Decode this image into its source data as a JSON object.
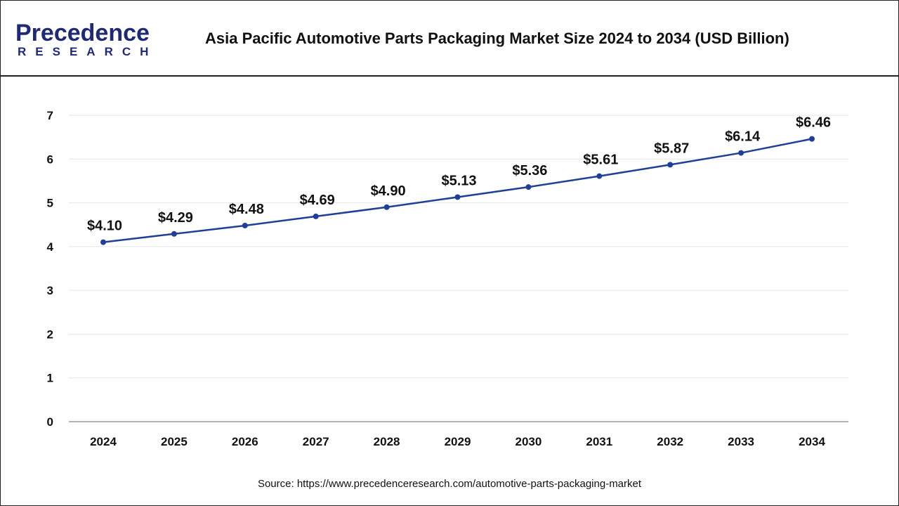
{
  "header": {
    "logo_line1": "Precedence",
    "logo_line2": "RESEARCH",
    "title": "Asia Pacific Automotive Parts Packaging Market Size 2024 to 2034 (USD Billion)"
  },
  "source": "Source: https://www.precedenceresearch.com/automotive-parts-packaging-market",
  "colors": {
    "line": "#1f3f99",
    "brand": "#1e2a78"
  },
  "chart_data": {
    "type": "line",
    "title": "Asia Pacific Automotive Parts Packaging Market Size 2024 to 2034 (USD Billion)",
    "categories": [
      "2024",
      "2025",
      "2026",
      "2027",
      "2028",
      "2029",
      "2030",
      "2031",
      "2032",
      "2033",
      "2034"
    ],
    "values": [
      4.1,
      4.29,
      4.48,
      4.69,
      4.9,
      5.13,
      5.36,
      5.61,
      5.87,
      6.14,
      6.46
    ],
    "labels": [
      "$4.10",
      "$4.29",
      "$4.48",
      "$4.69",
      "$4.90",
      "$5.13",
      "$5.36",
      "$5.61",
      "$5.87",
      "$6.14",
      "$6.46"
    ],
    "yticks": [
      "0",
      "1",
      "2",
      "3",
      "4",
      "5",
      "6",
      "7"
    ],
    "ylim": [
      0,
      7
    ],
    "grid": true,
    "legend": "none"
  }
}
